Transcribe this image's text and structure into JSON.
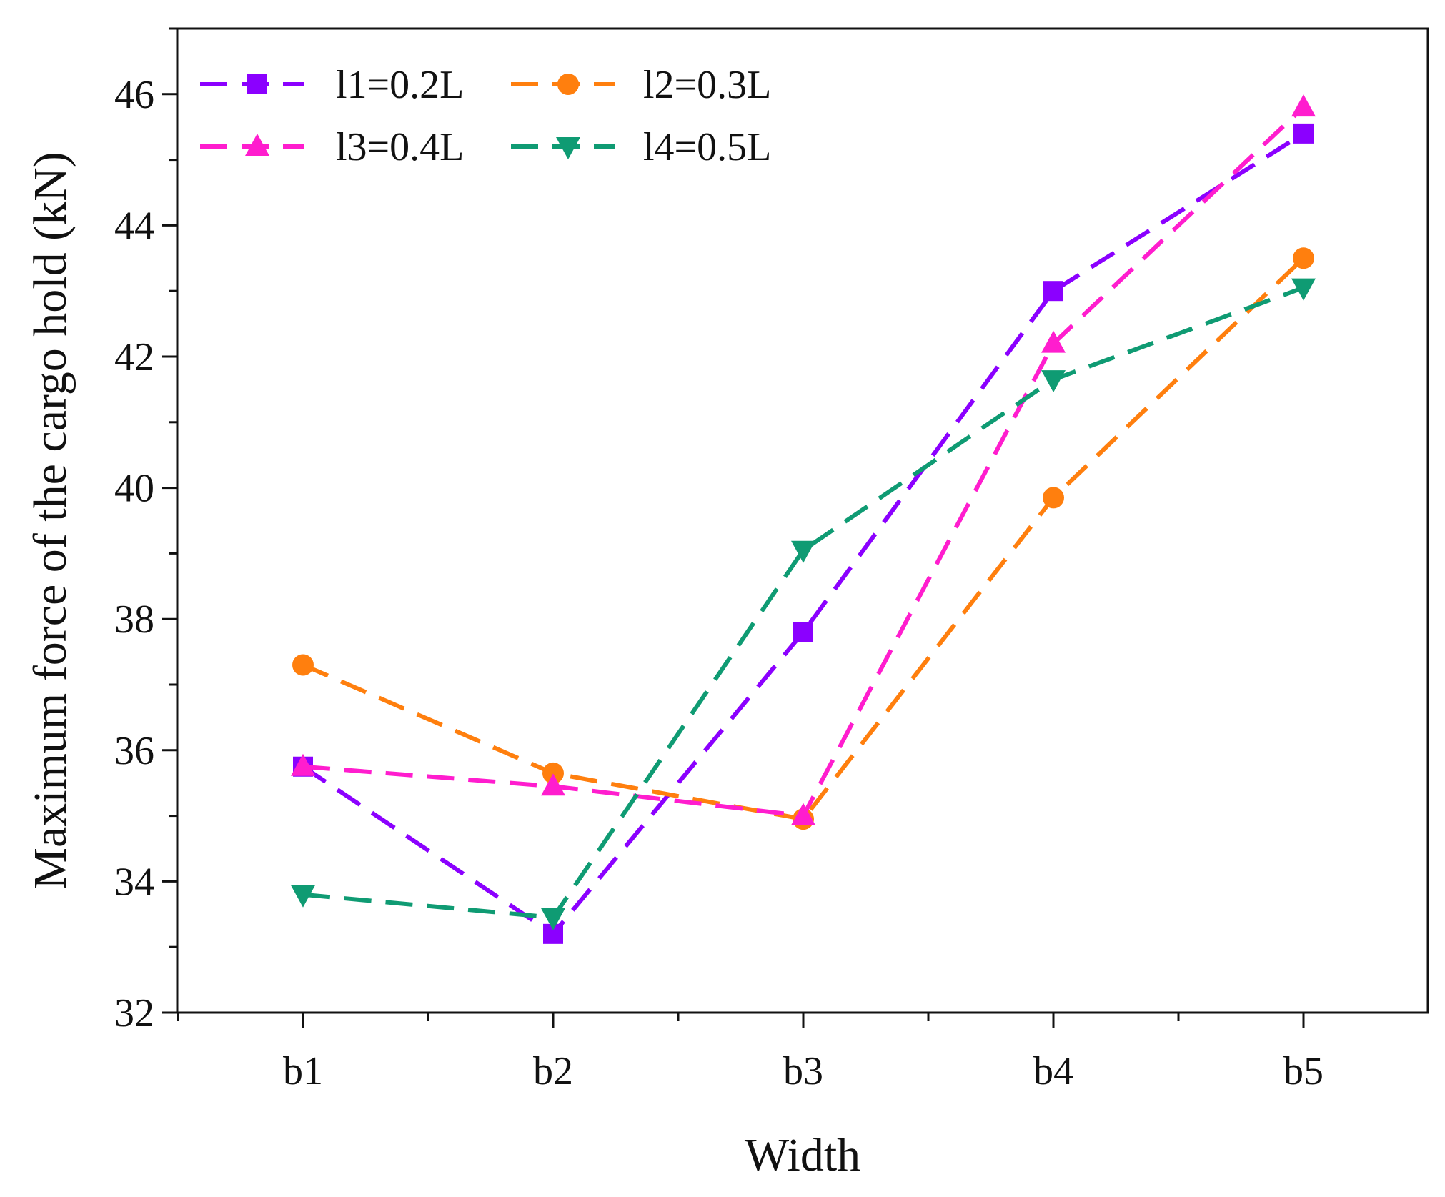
{
  "chart_data": {
    "type": "line",
    "title": "",
    "xlabel": "Width",
    "ylabel": "Maximum force of the cargo hold (kN)",
    "categories": [
      "b1",
      "b2",
      "b3",
      "b4",
      "b5"
    ],
    "ylim": [
      32,
      47
    ],
    "yticks": [
      32,
      34,
      36,
      38,
      40,
      42,
      44,
      46
    ],
    "grid": false,
    "legend_position": "top-left",
    "series": [
      {
        "name": "l1=0.2L",
        "color": "#8b00ff",
        "marker": "square",
        "values": [
          35.75,
          33.2,
          37.8,
          43.0,
          45.4
        ]
      },
      {
        "name": "l2=0.3L",
        "color": "#ff7f0e",
        "marker": "circle",
        "values": [
          37.3,
          35.65,
          34.95,
          39.85,
          43.5
        ]
      },
      {
        "name": "l3=0.4L",
        "color": "#ff1dce",
        "marker": "triangle-up",
        "values": [
          35.75,
          35.45,
          35.0,
          42.2,
          45.8
        ]
      },
      {
        "name": "l4=0.5L",
        "color": "#0f9b73",
        "marker": "triangle-down",
        "values": [
          33.8,
          33.45,
          39.05,
          41.65,
          43.05
        ]
      }
    ]
  }
}
